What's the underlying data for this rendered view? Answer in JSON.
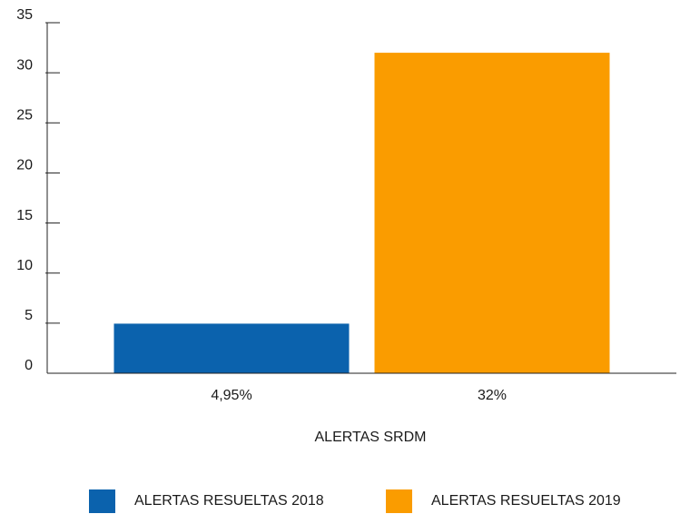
{
  "chart_data": {
    "type": "bar",
    "xlabel": "ALERTAS SRDM",
    "series": [
      {
        "name": "ALERTAS RESUELTAS 2018",
        "color": "#0b62ad",
        "values": [
          4.95
        ],
        "value_labels": [
          "4,95%"
        ]
      },
      {
        "name": "ALERTAS RESUELTAS 2019",
        "color": "#fa9c00",
        "values": [
          32
        ],
        "value_labels": [
          "32%"
        ]
      }
    ],
    "ylim": [
      0,
      35
    ],
    "yticks": [
      0,
      5,
      10,
      15,
      20,
      25,
      30,
      35
    ]
  }
}
